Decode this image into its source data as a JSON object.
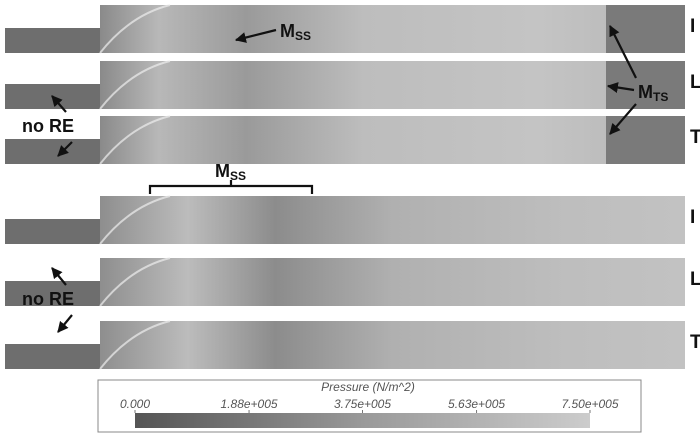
{
  "panels": {
    "top": {
      "rows": [
        "I",
        "L",
        "T"
      ]
    },
    "bottom": {
      "rows": [
        "I",
        "L",
        "T"
      ]
    }
  },
  "annotations": {
    "mss_top": {
      "main": "M",
      "sub": "SS"
    },
    "mts": {
      "main": "M",
      "sub": "TS"
    },
    "mss_bottom": {
      "main": "M",
      "sub": "SS"
    },
    "no_re_top": "no RE",
    "no_re_bottom": "no RE"
  },
  "colorbar": {
    "title": "Pressure (N/m^2)",
    "range": [
      0,
      750000
    ],
    "ticks": [
      {
        "value": 0,
        "label": "0.000"
      },
      {
        "value": 188000,
        "label": "1.88e+005"
      },
      {
        "value": 375000,
        "label": "3.75e+005"
      },
      {
        "value": 563000,
        "label": "5.63e+005"
      },
      {
        "value": 750000,
        "label": "7.50e+005"
      }
    ]
  }
}
